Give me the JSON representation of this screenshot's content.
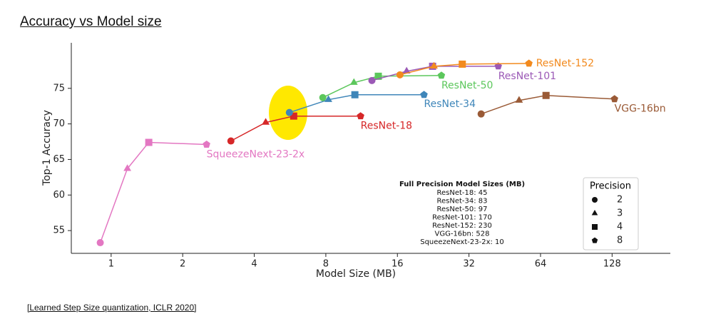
{
  "chart_data": {
    "type": "line",
    "title": "Accuracy vs Model size",
    "x_label": "Model Size (MB)",
    "y_label": "Top-1 Accuracy",
    "xscale": "log",
    "xlim": [
      0.68,
      225
    ],
    "ylim": [
      51.8,
      81.4
    ],
    "xticks": [
      1,
      2,
      4,
      8,
      16,
      32,
      64,
      128
    ],
    "yticks": [
      55,
      60,
      65,
      70,
      75
    ],
    "markers": [
      "circle",
      "triangle",
      "square",
      "pentagon"
    ],
    "series": [
      {
        "name": "ResNet-18",
        "color": "#d62728",
        "x": [
          3.19,
          4.47,
          5.86,
          11.2
        ],
        "values": [
          67.6,
          70.2,
          71.1,
          71.1
        ]
      },
      {
        "name": "ResNet-34",
        "color": "#3f86b9",
        "x": [
          5.62,
          8.2,
          10.6,
          20.7
        ],
        "values": [
          71.6,
          73.4,
          74.1,
          74.1
        ]
      },
      {
        "name": "ResNet-50",
        "color": "#5cc75c",
        "x": [
          7.77,
          10.5,
          13.3,
          24.5
        ],
        "values": [
          73.7,
          75.8,
          76.7,
          76.8
        ]
      },
      {
        "name": "ResNet-101",
        "color": "#9b59b6",
        "x": [
          12.5,
          17.5,
          22.5,
          42.5
        ],
        "values": [
          76.1,
          77.4,
          78.1,
          78.1
        ]
      },
      {
        "name": "ResNet-152",
        "color": "#f28a1e",
        "x": [
          16.4,
          22.8,
          30,
          57.2
        ],
        "values": [
          76.9,
          78.1,
          78.4,
          78.5
        ]
      },
      {
        "name": "VGG-16bn",
        "color": "#9a5a36",
        "x": [
          36,
          52,
          67.5,
          131
        ],
        "values": [
          71.4,
          73.3,
          74,
          73.5
        ]
      },
      {
        "name": "SqueezeNext-23-2x",
        "color": "#e377c2",
        "x": [
          0.9,
          1.17,
          1.44,
          2.52
        ],
        "values": [
          53.3,
          63.7,
          67.4,
          67.1
        ]
      }
    ],
    "annotation": {
      "title": "Full Precision Model Sizes (MB)",
      "lines": [
        "ResNet-18: 45",
        "ResNet-34: 83",
        "ResNet-50: 97",
        "ResNet-101: 170",
        "ResNet-152: 230",
        "VGG-16bn: 528",
        "SqueezeNext-23-2x: 10"
      ]
    },
    "legend": {
      "title": "Precision",
      "entries": [
        2,
        3,
        4,
        8
      ]
    },
    "footer": "[Learned Step Size quantization, ICLR 2020]"
  }
}
